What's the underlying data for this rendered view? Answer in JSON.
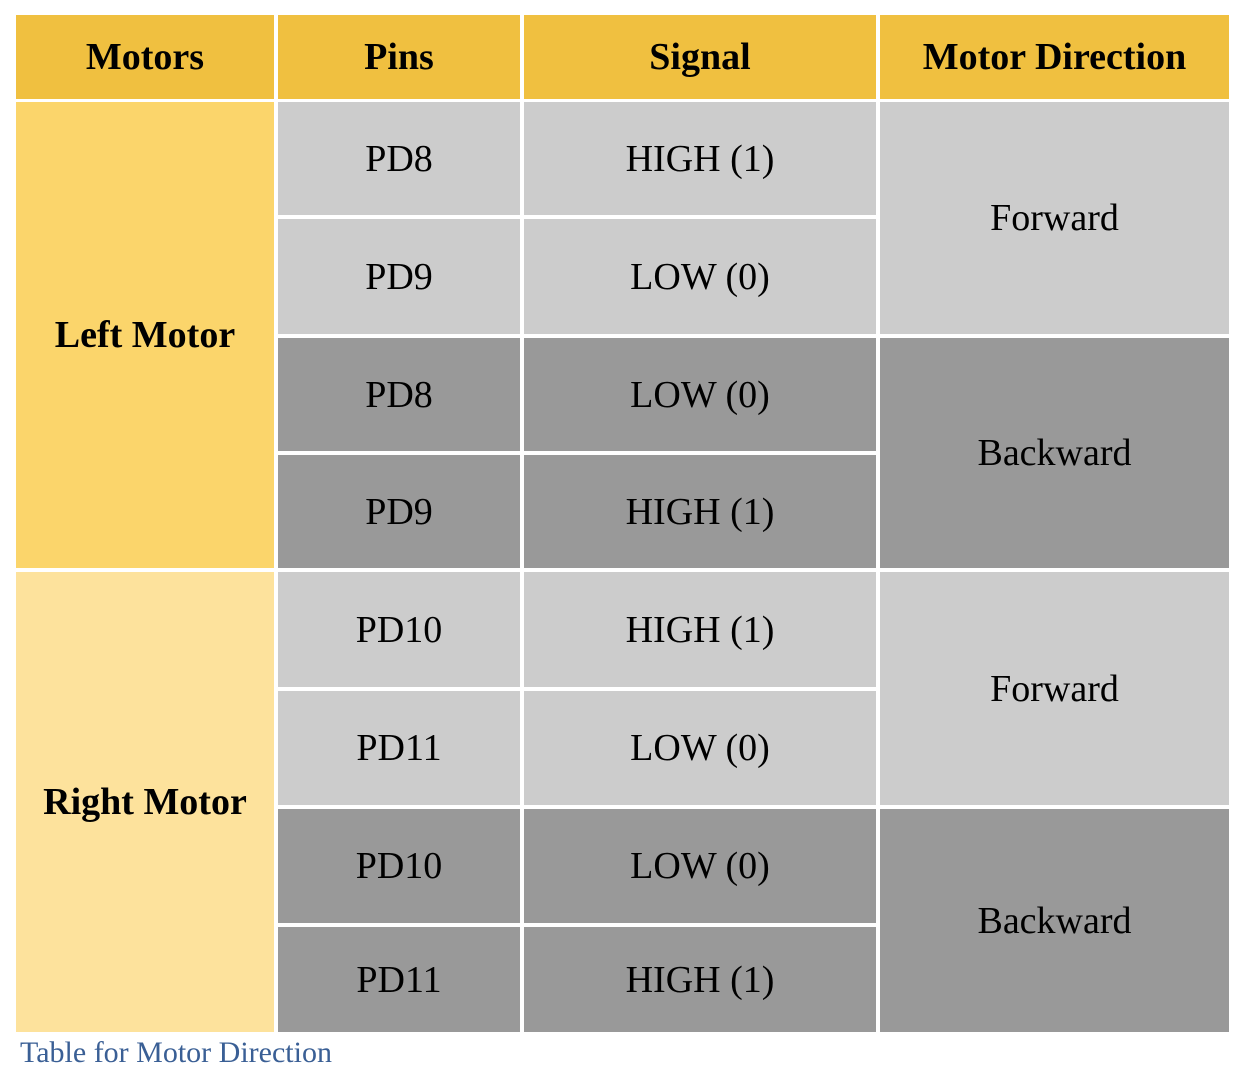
{
  "table": {
    "headers": [
      "Motors",
      "Pins",
      "Signal",
      "Motor Direction"
    ],
    "motors": [
      "Left Motor",
      "Right Motor"
    ],
    "pins": [
      "PD8",
      "PD9",
      "PD8",
      "PD9",
      "PD10",
      "PD11",
      "PD10",
      "PD11"
    ],
    "signals": [
      "HIGH (1)",
      "LOW (0)",
      "LOW (0)",
      "HIGH (1)",
      "HIGH (1)",
      "LOW (0)",
      "LOW (0)",
      "HIGH (1)"
    ],
    "directions": [
      "Forward",
      "Backward",
      "Forward",
      "Backward"
    ]
  },
  "colors": {
    "header_bg": "#f0c040",
    "left_motor_bg": "#fbd56b",
    "right_motor_bg": "#fde29c",
    "forward_rows_bg": "#cccccc",
    "backward_rows_bg": "#999999",
    "caption_text": "#3a5f95"
  },
  "caption": {
    "text": "Table for Motor Direction"
  }
}
